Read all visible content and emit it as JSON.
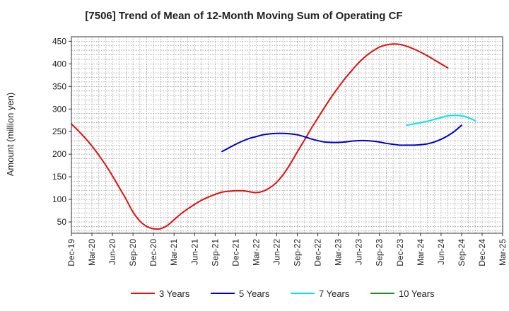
{
  "chart_data": {
    "type": "line",
    "title": "[7506]  Trend of Mean of 12-Month Moving Sum of Operating CF",
    "ylabel": "Amount (million yen)",
    "xlabel": "",
    "ylim": [
      25,
      460
    ],
    "yticks": [
      50,
      100,
      150,
      200,
      250,
      300,
      350,
      400,
      450
    ],
    "xtick_labels": [
      "Dec-19",
      "Mar-20",
      "Jun-20",
      "Sep-20",
      "Dec-20",
      "Mar-21",
      "Jun-21",
      "Sep-21",
      "Dec-21",
      "Mar-22",
      "Jun-22",
      "Sep-22",
      "Dec-22",
      "Mar-23",
      "Jun-23",
      "Sep-23",
      "Dec-23",
      "Mar-24",
      "Jun-24",
      "Sep-24",
      "Dec-24",
      "Mar-25"
    ],
    "x_count": 64,
    "grid": true,
    "legend_position": "bottom",
    "series": [
      {
        "name": "3 Years",
        "color": "#dd1111",
        "start_index": 0,
        "values": [
          267,
          252,
          236,
          218,
          198,
          176,
          152,
          126,
          100,
          72,
          52,
          40,
          35,
          35,
          42,
          55,
          68,
          79,
          89,
          98,
          105,
          111,
          116,
          118,
          119,
          119,
          117,
          115,
          118,
          126,
          138,
          156,
          179,
          205,
          230,
          256,
          280,
          304,
          327,
          348,
          368,
          386,
          403,
          417,
          428,
          437,
          442,
          444,
          443,
          439,
          433,
          426,
          418,
          409,
          400,
          391
        ]
      },
      {
        "name": "5 Years",
        "color": "#0000cc",
        "start_index": 22,
        "values": [
          206,
          214,
          222,
          229,
          235,
          239,
          243,
          245,
          246,
          246,
          245,
          243,
          239,
          234,
          230,
          227,
          226,
          226,
          227,
          229,
          230,
          230,
          229,
          227,
          224,
          222,
          220,
          220,
          220,
          221,
          223,
          227,
          233,
          241,
          251,
          264
        ]
      },
      {
        "name": "7 Years",
        "color": "#00e5ee",
        "start_index": 49,
        "values": [
          264,
          267,
          270,
          273,
          277,
          281,
          285,
          286,
          285,
          281,
          274
        ]
      },
      {
        "name": "10 Years",
        "color": "#228b22",
        "start_index": 0,
        "values": []
      }
    ]
  }
}
